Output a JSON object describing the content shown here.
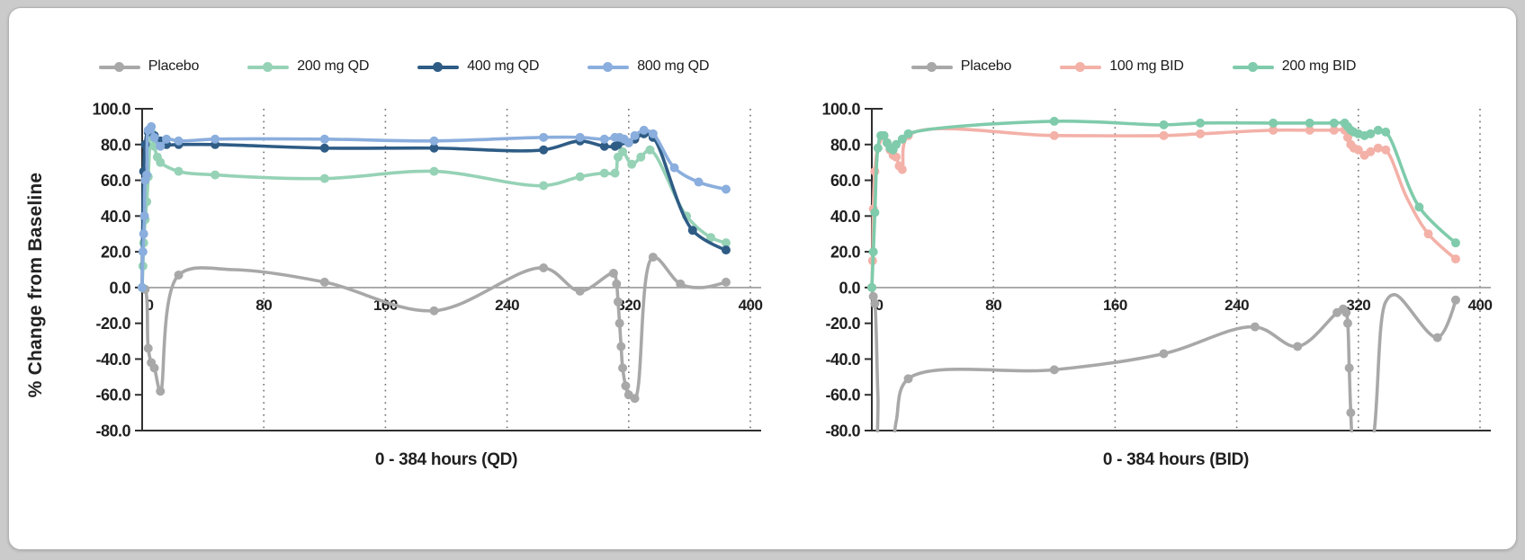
{
  "page": {
    "background_color": "#cbcbcb",
    "card_background": "#ffffff",
    "card_border_color": "#b3b3b3"
  },
  "ylabel": "% Change from Baseline",
  "colors": {
    "placebo": "#a8a8a8",
    "qd_200": "#96d2b6",
    "qd_400": "#2e5c85",
    "qd_800": "#8aaedd",
    "bid_100": "#f3b1a8",
    "bid_200": "#7fcbab",
    "zero_line": "#9a9a9a",
    "axis": "#2f2f2f",
    "grid_dots": "#6e6e6e"
  },
  "chart_data": [
    {
      "type": "line",
      "id": "qd",
      "xlabel": "0 - 384 hours (QD)",
      "ylim": [
        -80,
        100
      ],
      "xlim": [
        0,
        400
      ],
      "y_ticks": [
        100,
        80,
        60,
        40,
        20,
        0,
        -20,
        -40,
        -60,
        -80
      ],
      "x_ticks": [
        0,
        80,
        160,
        240,
        320,
        400
      ],
      "grid": "vertical-dotted",
      "legend_position": "top-center",
      "series": [
        {
          "name": "Placebo",
          "color": "#a8a8a8",
          "points": [
            [
              0,
              0
            ],
            [
              2,
              -1
            ],
            [
              4,
              -34
            ],
            [
              6,
              -42
            ],
            [
              8,
              -45
            ],
            [
              12,
              -58
            ],
            [
              24,
              7
            ],
            [
              60,
              10,
              0
            ],
            [
              120,
              3
            ],
            [
              192,
              -13
            ],
            [
              264,
              11
            ],
            [
              288,
              -2
            ],
            [
              310,
              8
            ],
            [
              312,
              2
            ],
            [
              313,
              -8
            ],
            [
              314,
              -20
            ],
            [
              315,
              -33
            ],
            [
              316,
              -45
            ],
            [
              318,
              -55
            ],
            [
              320,
              -60
            ],
            [
              324,
              -62
            ],
            [
              336,
              17
            ],
            [
              354,
              2
            ],
            [
              368,
              0,
              0
            ],
            [
              384,
              3
            ]
          ]
        },
        {
          "name": "200 mg QD",
          "color": "#96d2b6",
          "points": [
            [
              0,
              0
            ],
            [
              0.5,
              12
            ],
            [
              1,
              25
            ],
            [
              2,
              38
            ],
            [
              3,
              48
            ],
            [
              4,
              62
            ],
            [
              6,
              87
            ],
            [
              8,
              79
            ],
            [
              10,
              73
            ],
            [
              12,
              70
            ],
            [
              24,
              65
            ],
            [
              48,
              63
            ],
            [
              120,
              61
            ],
            [
              192,
              65
            ],
            [
              264,
              57
            ],
            [
              288,
              62
            ],
            [
              304,
              64
            ],
            [
              311,
              64
            ],
            [
              313,
              73
            ],
            [
              316,
              76
            ],
            [
              322,
              69
            ],
            [
              328,
              73
            ],
            [
              334,
              77
            ],
            [
              358,
              40
            ],
            [
              374,
              28
            ],
            [
              384,
              25
            ]
          ]
        },
        {
          "name": "400 mg QD",
          "color": "#2e5c85",
          "points": [
            [
              0,
              0,
              0
            ],
            [
              1,
              65
            ],
            [
              2,
              80
            ],
            [
              4,
              87
            ],
            [
              8,
              85
            ],
            [
              12,
              82
            ],
            [
              16,
              80
            ],
            [
              24,
              80
            ],
            [
              48,
              80
            ],
            [
              120,
              78
            ],
            [
              192,
              78
            ],
            [
              264,
              77
            ],
            [
              288,
              82
            ],
            [
              304,
              79
            ],
            [
              311,
              79
            ],
            [
              313,
              80
            ],
            [
              316,
              82
            ],
            [
              320,
              81
            ],
            [
              324,
              83
            ],
            [
              330,
              86
            ],
            [
              336,
              84
            ],
            [
              362,
              32
            ],
            [
              384,
              21
            ]
          ]
        },
        {
          "name": "800 mg QD",
          "color": "#8aaedd",
          "points": [
            [
              0,
              0
            ],
            [
              0.5,
              20
            ],
            [
              1,
              30
            ],
            [
              1.5,
              40
            ],
            [
              2,
              60
            ],
            [
              3,
              63
            ],
            [
              4,
              88
            ],
            [
              6,
              90
            ],
            [
              8,
              84
            ],
            [
              12,
              79
            ],
            [
              16,
              83
            ],
            [
              24,
              82
            ],
            [
              48,
              83
            ],
            [
              120,
              83
            ],
            [
              192,
              82
            ],
            [
              264,
              84
            ],
            [
              288,
              84
            ],
            [
              304,
              83
            ],
            [
              311,
              84
            ],
            [
              314,
              84
            ],
            [
              317,
              83
            ],
            [
              320,
              81
            ],
            [
              324,
              85
            ],
            [
              330,
              88
            ],
            [
              336,
              86
            ],
            [
              350,
              67
            ],
            [
              366,
              59
            ],
            [
              384,
              55
            ]
          ]
        }
      ]
    },
    {
      "type": "line",
      "id": "bid",
      "xlabel": "0 - 384 hours (BID)",
      "ylim": [
        -80,
        100
      ],
      "xlim": [
        0,
        400
      ],
      "y_ticks": [
        100,
        80,
        60,
        40,
        20,
        0,
        -20,
        -40,
        -60,
        -80
      ],
      "x_ticks": [
        0,
        80,
        160,
        240,
        320,
        400
      ],
      "grid": "vertical-dotted",
      "legend_position": "top-center",
      "series": [
        {
          "name": "Placebo",
          "color": "#a8a8a8",
          "points": [
            [
              0,
              0
            ],
            [
              1,
              -5
            ],
            [
              2,
              -9
            ],
            [
              4,
              -60,
              0
            ],
            [
              6,
              -95,
              0
            ],
            [
              12,
              -95,
              0
            ],
            [
              16,
              -75,
              0
            ],
            [
              24,
              -51
            ],
            [
              120,
              -46
            ],
            [
              192,
              -37
            ],
            [
              252,
              -22
            ],
            [
              280,
              -33
            ],
            [
              306,
              -14
            ],
            [
              310,
              -12
            ],
            [
              312,
              -14
            ],
            [
              313,
              -20
            ],
            [
              314,
              -45
            ],
            [
              315,
              -70
            ],
            [
              316,
              -85
            ],
            [
              318,
              -95,
              0
            ],
            [
              326,
              -95,
              0
            ],
            [
              338,
              -8,
              0
            ],
            [
              344,
              -4,
              0
            ],
            [
              372,
              -28
            ],
            [
              384,
              -7
            ]
          ]
        },
        {
          "name": "100 mg BID",
          "color": "#f3b1a8",
          "points": [
            [
              0,
              0,
              0
            ],
            [
              0.5,
              15
            ],
            [
              1,
              44
            ],
            [
              2,
              65
            ],
            [
              4,
              78
            ],
            [
              8,
              85
            ],
            [
              10,
              81
            ],
            [
              12,
              77
            ],
            [
              14,
              74
            ],
            [
              16,
              73
            ],
            [
              18,
              68
            ],
            [
              20,
              66
            ],
            [
              24,
              85
            ],
            [
              120,
              85
            ],
            [
              192,
              85
            ],
            [
              216,
              86
            ],
            [
              264,
              88
            ],
            [
              288,
              88
            ],
            [
              304,
              88
            ],
            [
              311,
              88
            ],
            [
              313,
              84
            ],
            [
              315,
              80
            ],
            [
              317,
              78
            ],
            [
              320,
              77
            ],
            [
              324,
              74
            ],
            [
              328,
              76
            ],
            [
              333,
              78
            ],
            [
              338,
              77
            ],
            [
              352,
              50,
              0
            ],
            [
              366,
              30
            ],
            [
              384,
              16
            ]
          ]
        },
        {
          "name": "200 mg BID",
          "color": "#7fcbab",
          "points": [
            [
              0,
              0
            ],
            [
              1,
              20
            ],
            [
              2,
              42
            ],
            [
              4,
              78
            ],
            [
              6,
              85
            ],
            [
              8,
              85
            ],
            [
              10,
              81
            ],
            [
              12,
              78
            ],
            [
              14,
              77
            ],
            [
              16,
              80
            ],
            [
              20,
              83
            ],
            [
              24,
              86
            ],
            [
              120,
              93
            ],
            [
              192,
              91
            ],
            [
              216,
              92
            ],
            [
              264,
              92
            ],
            [
              288,
              92
            ],
            [
              304,
              92
            ],
            [
              311,
              92
            ],
            [
              313,
              90
            ],
            [
              315,
              88
            ],
            [
              317,
              87
            ],
            [
              320,
              86
            ],
            [
              324,
              85
            ],
            [
              328,
              86
            ],
            [
              333,
              88
            ],
            [
              338,
              87
            ],
            [
              360,
              45
            ],
            [
              384,
              25
            ]
          ]
        }
      ]
    }
  ]
}
